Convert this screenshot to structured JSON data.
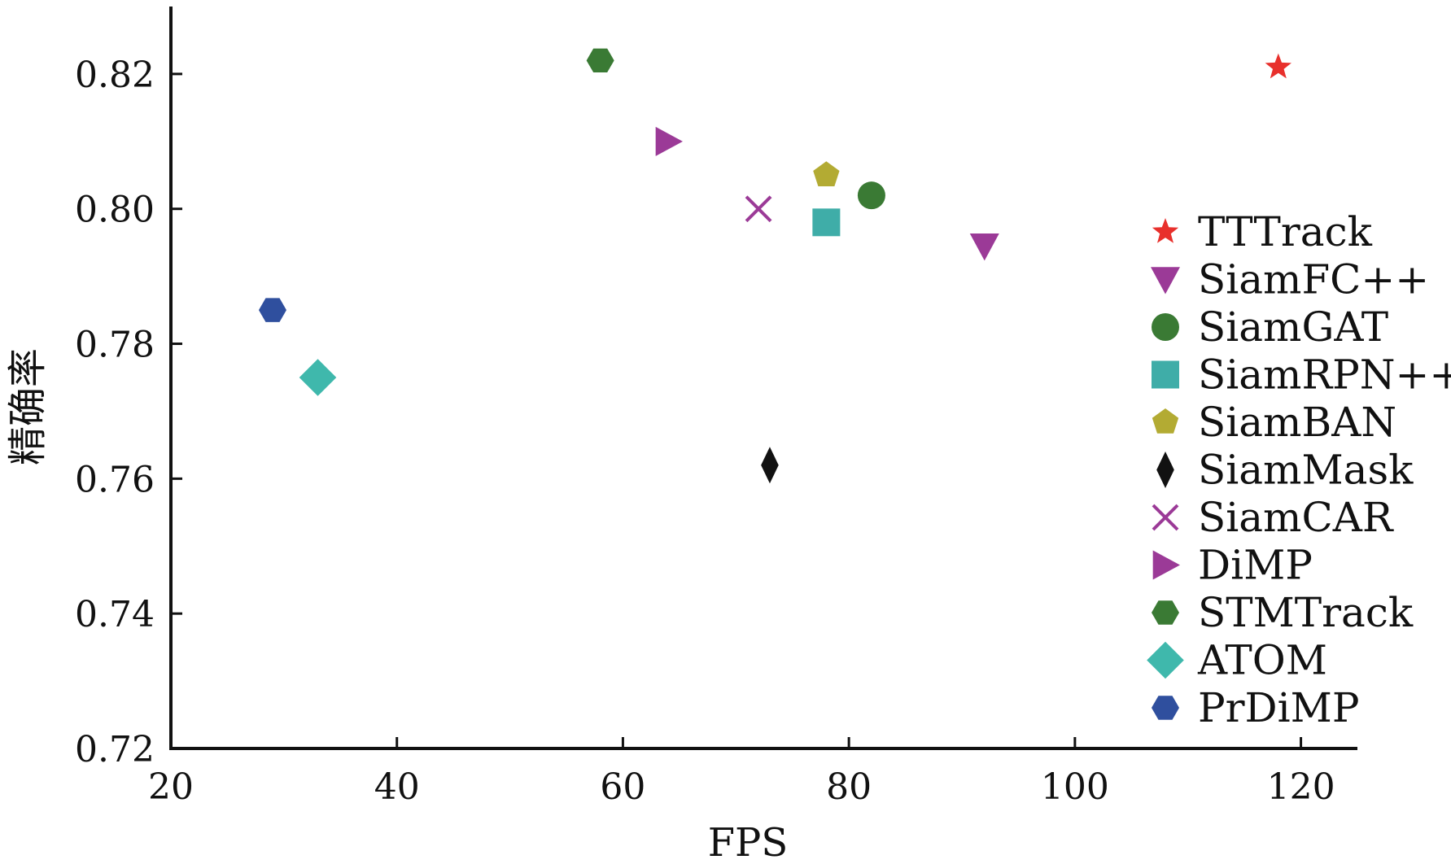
{
  "chart_data": {
    "type": "scatter",
    "title": "",
    "xlabel": "FPS",
    "ylabel": "精确率",
    "xlim": [
      20,
      125
    ],
    "ylim": [
      0.72,
      0.83
    ],
    "xticks": [
      "20",
      "40",
      "60",
      "80",
      "100",
      "120"
    ],
    "yticks": [
      "0.72",
      "0.74",
      "0.76",
      "0.78",
      "0.80",
      "0.82"
    ],
    "grid": false,
    "legend_position": "right",
    "series": [
      {
        "name": "TTTrack",
        "marker": "star",
        "color": "#e8302c",
        "x": 118,
        "y": 0.821
      },
      {
        "name": "SiamFC++",
        "marker": "triangle-down",
        "color": "#9b3a97",
        "x": 92,
        "y": 0.7945
      },
      {
        "name": "SiamGAT",
        "marker": "circle",
        "color": "#3a7a34",
        "x": 82,
        "y": 0.802
      },
      {
        "name": "SiamRPN++",
        "marker": "square",
        "color": "#3fada8",
        "x": 78,
        "y": 0.798
      },
      {
        "name": "SiamBAN",
        "marker": "pentagon",
        "color": "#b3ab33",
        "x": 78,
        "y": 0.805
      },
      {
        "name": "SiamMask",
        "marker": "diamond-thin",
        "color": "#111111",
        "x": 73,
        "y": 0.762
      },
      {
        "name": "SiamCAR",
        "marker": "x",
        "color": "#9b3a97",
        "x": 72,
        "y": 0.8
      },
      {
        "name": "DiMP",
        "marker": "triangle-right",
        "color": "#9b3a97",
        "x": 64,
        "y": 0.81
      },
      {
        "name": "STMTrack",
        "marker": "hexagon",
        "color": "#3a7a34",
        "x": 58,
        "y": 0.822
      },
      {
        "name": "ATOM",
        "marker": "diamond",
        "color": "#3fb8ac",
        "x": 33,
        "y": 0.775
      },
      {
        "name": "PrDiMP",
        "marker": "hexagon",
        "color": "#2f4f9e",
        "x": 29,
        "y": 0.785
      }
    ]
  }
}
